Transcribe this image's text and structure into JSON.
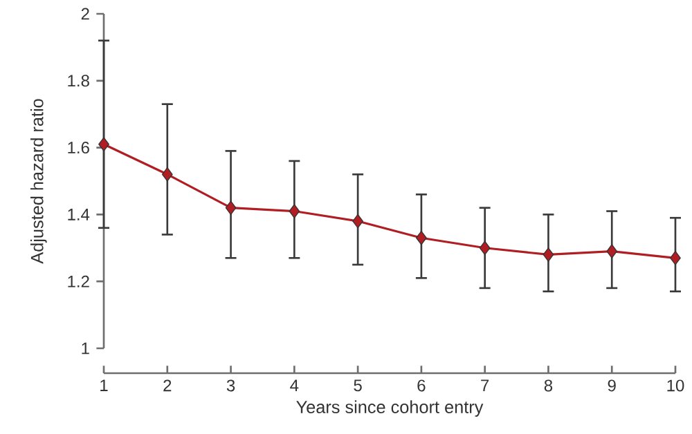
{
  "chart_data": {
    "type": "line",
    "xlabel": "Years since cohort entry",
    "ylabel": "Adjusted hazard ratio",
    "x": [
      1,
      2,
      3,
      4,
      5,
      6,
      7,
      8,
      9,
      10
    ],
    "series": [
      {
        "color": "#b01e23",
        "values": [
          1.61,
          1.52,
          1.42,
          1.41,
          1.38,
          1.33,
          1.3,
          1.28,
          1.29,
          1.27
        ],
        "errors": [
          [
            1.36,
            1.92
          ],
          [
            1.34,
            1.73
          ],
          [
            1.27,
            1.59
          ],
          [
            1.27,
            1.56
          ],
          [
            1.25,
            1.52
          ],
          [
            1.21,
            1.46
          ],
          [
            1.18,
            1.42
          ],
          [
            1.17,
            1.4
          ],
          [
            1.18,
            1.41
          ],
          [
            1.17,
            1.39
          ]
        ]
      }
    ],
    "xlim": [
      1,
      10
    ],
    "xticks": [
      1,
      2,
      3,
      4,
      5,
      6,
      7,
      8,
      9,
      10
    ],
    "ylim": [
      1,
      2
    ],
    "yticks": [
      1,
      1.2,
      1.4,
      1.6,
      1.8,
      2
    ],
    "marker": "diamond",
    "line_style": "solid",
    "grid": false
  }
}
